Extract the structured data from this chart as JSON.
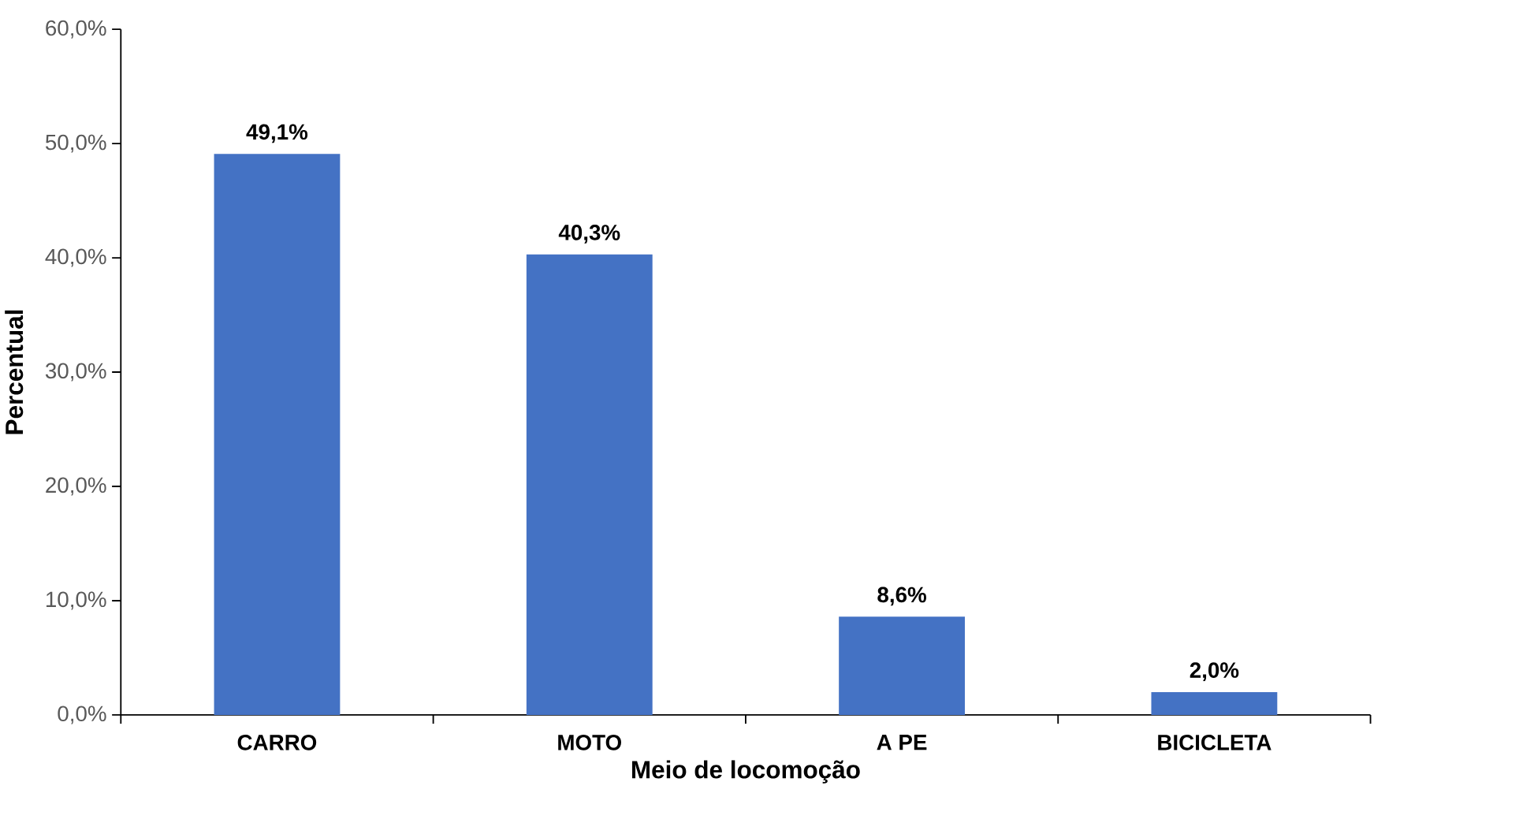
{
  "chart_data": {
    "type": "bar",
    "xlabel": "Meio de locomoção",
    "ylabel": "Percentual",
    "categories": [
      "CARRO",
      "MOTO",
      "A PE",
      "BICICLETA"
    ],
    "values": [
      49.1,
      40.3,
      8.6,
      2.0
    ],
    "value_labels": [
      "49,1%",
      "40,3%",
      "8,6%",
      "2,0%"
    ],
    "color": "#4472c4",
    "ylim": [
      0,
      60
    ],
    "yticks": [
      {
        "value": 0,
        "label": "0,0%"
      },
      {
        "value": 10,
        "label": "10,0%"
      },
      {
        "value": 20,
        "label": "20,0%"
      },
      {
        "value": 30,
        "label": "30,0%"
      },
      {
        "value": 40,
        "label": "40,0%"
      },
      {
        "value": 50,
        "label": "50,0%"
      },
      {
        "value": 60,
        "label": "60,0%"
      }
    ]
  }
}
